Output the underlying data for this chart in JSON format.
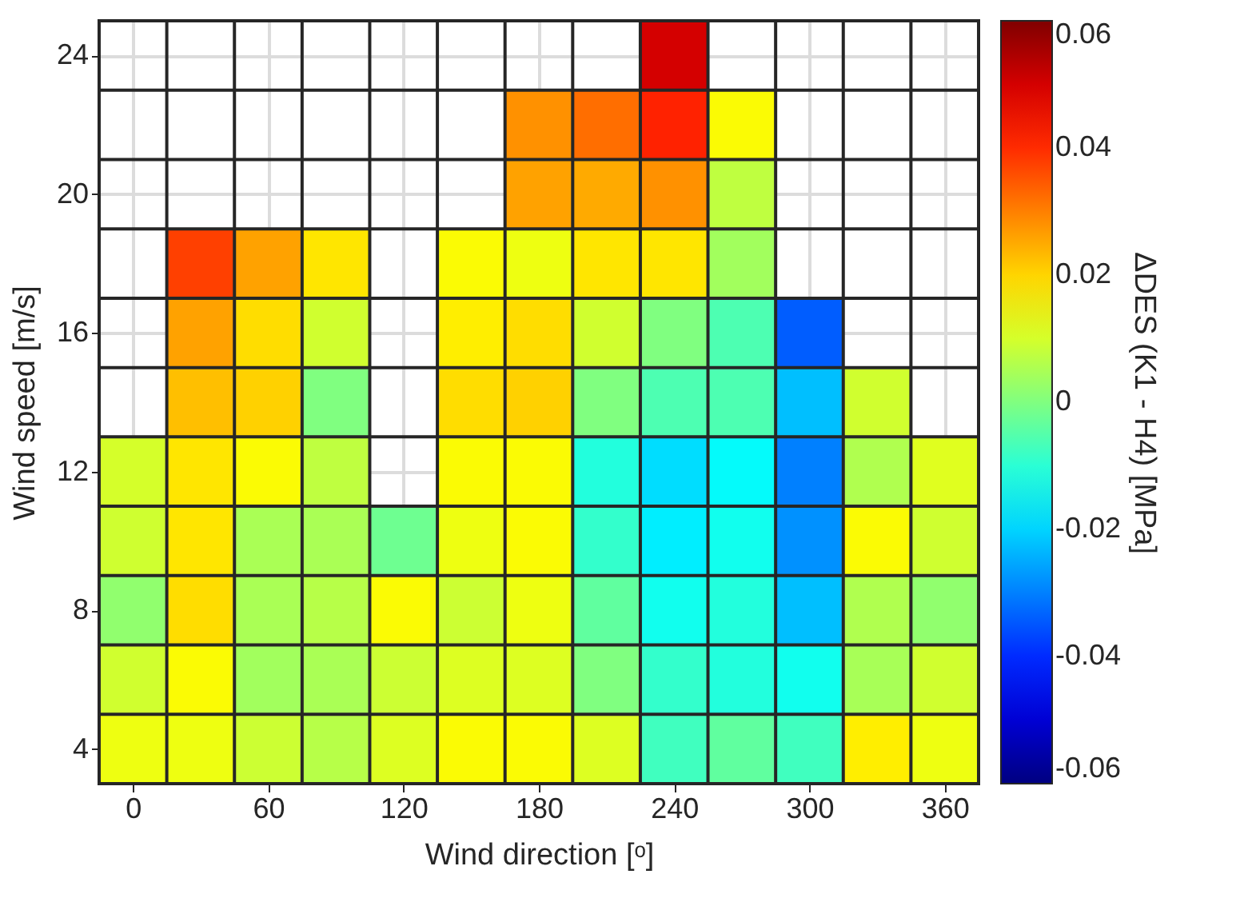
{
  "chart_data": {
    "type": "heatmap",
    "xlabel": "Wind direction [ᵒ]",
    "ylabel": "Wind speed [m/s]",
    "clabel": "ΔDES (K1 - H4) [MPa]",
    "categories": [
      "0",
      null,
      "60",
      null,
      "120",
      null,
      "180",
      null,
      "240",
      null,
      "300",
      null,
      "360"
    ],
    "y_categories": [
      "24",
      null,
      "20",
      null,
      "16",
      null,
      "12",
      null,
      "8",
      null,
      "4"
    ],
    "cells": [
      [
        null,
        null,
        null,
        null,
        null,
        null,
        null,
        null,
        0.05,
        null,
        null,
        null,
        null
      ],
      [
        null,
        null,
        null,
        null,
        null,
        null,
        0.028,
        0.032,
        0.041,
        0.015,
        null,
        null,
        null
      ],
      [
        null,
        null,
        null,
        null,
        null,
        null,
        0.026,
        0.025,
        0.028,
        0.0075,
        null,
        null,
        null
      ],
      [
        null,
        0.0375,
        0.026,
        0.018,
        null,
        0.015,
        0.013,
        0.018,
        0.018,
        0.004,
        null,
        null,
        null
      ],
      [
        null,
        0.026,
        0.019,
        0.0095,
        null,
        0.017,
        0.019,
        0.0095,
        0.0,
        -0.006,
        -0.034,
        null,
        null
      ],
      [
        null,
        0.0225,
        0.0205,
        0.0,
        null,
        0.019,
        0.0205,
        0.0,
        -0.006,
        -0.006,
        -0.0225,
        0.0095,
        null
      ],
      [
        0.01,
        0.018,
        0.015,
        0.0075,
        null,
        0.015,
        0.015,
        -0.011,
        -0.019,
        -0.015,
        -0.03,
        0.0057,
        0.0113
      ],
      [
        0.0094,
        0.018,
        0.005,
        0.005,
        -0.002,
        0.013,
        0.015,
        -0.009,
        -0.017,
        -0.013,
        -0.028,
        0.015,
        0.0094
      ],
      [
        0.002,
        0.019,
        0.005,
        0.0066,
        0.015,
        0.009,
        0.013,
        -0.0037,
        -0.013,
        -0.011,
        -0.0225,
        0.0057,
        0.002
      ],
      [
        0.0095,
        0.015,
        0.004,
        0.005,
        0.009,
        0.011,
        0.011,
        0.0,
        -0.009,
        -0.011,
        -0.013,
        0.0048,
        0.0095
      ],
      [
        0.013,
        0.013,
        0.009,
        0.0066,
        0.011,
        0.015,
        0.015,
        0.011,
        -0.0075,
        -0.0037,
        -0.0075,
        0.017,
        0.013
      ]
    ],
    "clim": [
      -0.06,
      0.06
    ],
    "cticks": [
      -0.06,
      -0.04,
      -0.02,
      0,
      0.02,
      0.04,
      0.06
    ],
    "grid": true
  }
}
